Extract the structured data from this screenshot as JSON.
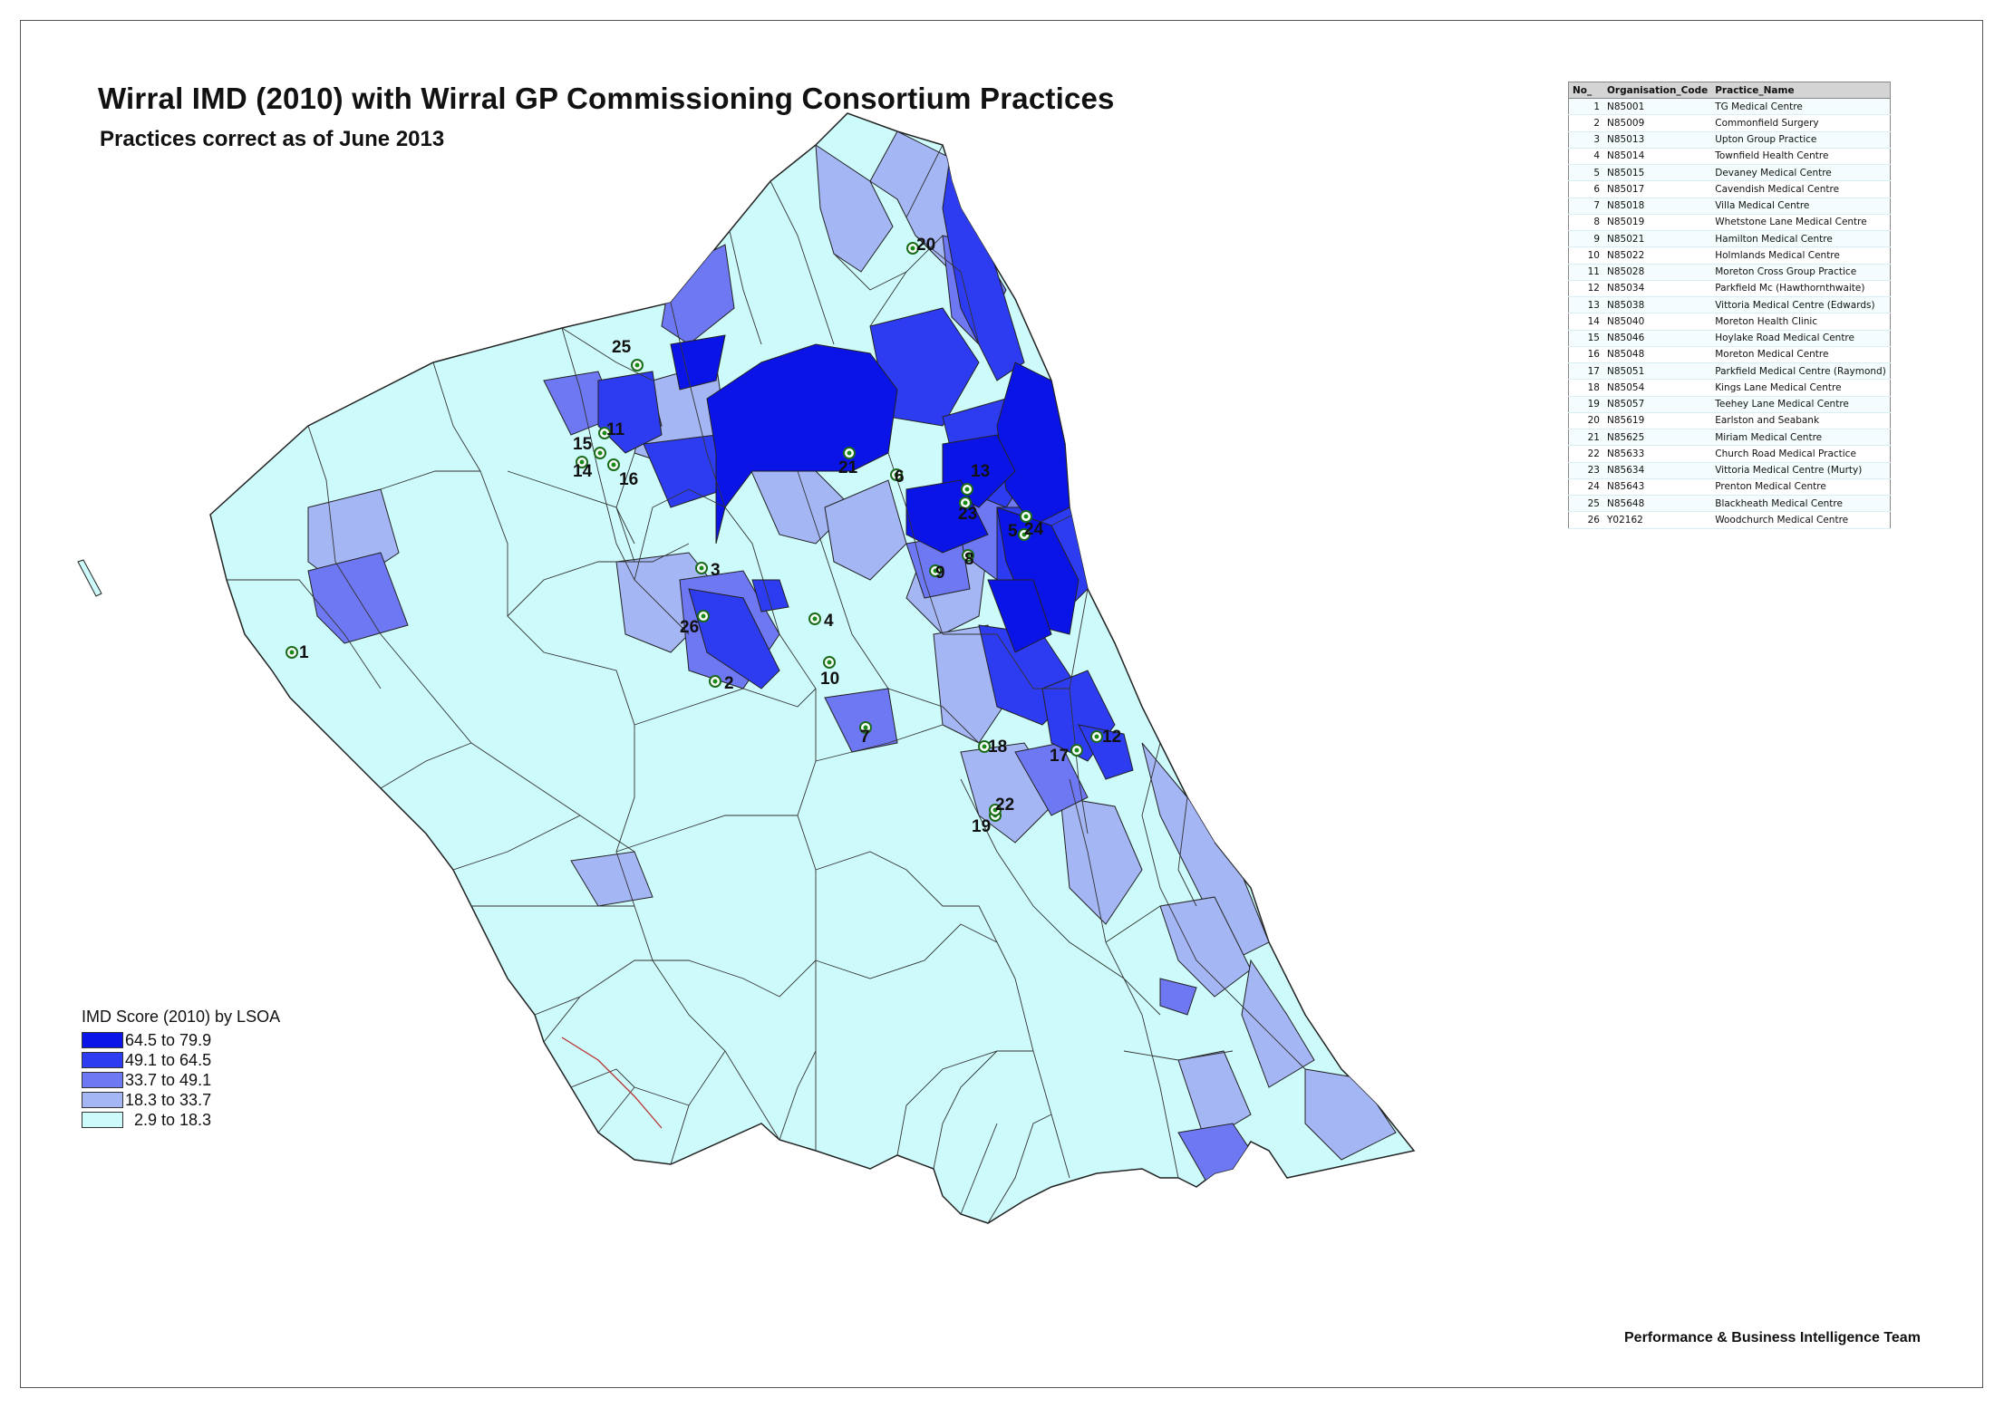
{
  "title": "Wirral IMD (2010) with Wirral GP Commissioning Consortium Practices",
  "subtitle": "Practices correct as of June 2013",
  "credit": "Performance & Business Intelligence Team",
  "legend": {
    "title": "IMD Score (2010) by LSOA",
    "classes": [
      {
        "label": "64.5 to 79.9",
        "color": "#0a14e6"
      },
      {
        "label": "49.1 to 64.5",
        "color": "#2d3cf0"
      },
      {
        "label": "33.7 to 49.1",
        "color": "#6e78f2"
      },
      {
        "label": "18.3 to 33.7",
        "color": "#a4b6f4"
      },
      {
        "label": "  2.9 to 18.3",
        "color": "#cdfafa"
      }
    ]
  },
  "table": {
    "headers": {
      "no": "No_",
      "code": "Organisation_Code",
      "name": "Practice_Name"
    },
    "rows": [
      {
        "no": "1",
        "code": "N85001",
        "name": "TG Medical Centre"
      },
      {
        "no": "2",
        "code": "N85009",
        "name": "Commonfield Surgery"
      },
      {
        "no": "3",
        "code": "N85013",
        "name": "Upton Group Practice"
      },
      {
        "no": "4",
        "code": "N85014",
        "name": "Townfield Health Centre"
      },
      {
        "no": "5",
        "code": "N85015",
        "name": "Devaney Medical Centre"
      },
      {
        "no": "6",
        "code": "N85017",
        "name": "Cavendish Medical Centre"
      },
      {
        "no": "7",
        "code": "N85018",
        "name": "Villa Medical Centre"
      },
      {
        "no": "8",
        "code": "N85019",
        "name": "Whetstone Lane Medical Centre"
      },
      {
        "no": "9",
        "code": "N85021",
        "name": "Hamilton Medical Centre"
      },
      {
        "no": "10",
        "code": "N85022",
        "name": "Holmlands Medical Centre"
      },
      {
        "no": "11",
        "code": "N85028",
        "name": "Moreton Cross Group Practice"
      },
      {
        "no": "12",
        "code": "N85034",
        "name": "Parkfield Mc (Hawthornthwaite)"
      },
      {
        "no": "13",
        "code": "N85038",
        "name": "Vittoria Medical Centre (Edwards)"
      },
      {
        "no": "14",
        "code": "N85040",
        "name": "Moreton Health Clinic"
      },
      {
        "no": "15",
        "code": "N85046",
        "name": "Hoylake Road Medical Centre"
      },
      {
        "no": "16",
        "code": "N85048",
        "name": "Moreton Medical Centre"
      },
      {
        "no": "17",
        "code": "N85051",
        "name": "Parkfield Medical Centre (Raymond)"
      },
      {
        "no": "18",
        "code": "N85054",
        "name": "Kings Lane Medical Centre"
      },
      {
        "no": "19",
        "code": "N85057",
        "name": "Teehey Lane Medical Centre"
      },
      {
        "no": "20",
        "code": "N85619",
        "name": "Earlston and Seabank"
      },
      {
        "no": "21",
        "code": "N85625",
        "name": "Miriam Medical Centre"
      },
      {
        "no": "22",
        "code": "N85633",
        "name": "Church Road Medical Practice"
      },
      {
        "no": "23",
        "code": "N85634",
        "name": "Vittoria Medical Centre (Murty)"
      },
      {
        "no": "24",
        "code": "N85643",
        "name": "Prenton Medical Centre"
      },
      {
        "no": "25",
        "code": "N85648",
        "name": "Blackheath Medical Centre"
      },
      {
        "no": "26",
        "code": "Y02162",
        "name": "Woodchurch Medical Centre"
      }
    ]
  },
  "practice_markers": [
    "1",
    "2",
    "3",
    "4",
    "5",
    "6",
    "7",
    "8",
    "9",
    "10",
    "11",
    "12",
    "13",
    "14",
    "15",
    "16",
    "17",
    "18",
    "19",
    "20",
    "21",
    "22",
    "23",
    "24",
    "25",
    "26"
  ]
}
